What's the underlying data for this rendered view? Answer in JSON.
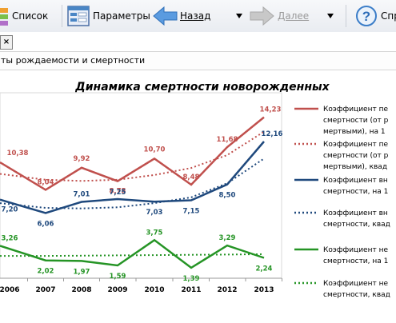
{
  "toolbar": {
    "list_label": "Список",
    "params_label": "Параметры",
    "back_label": "Назад",
    "forward_label": "Далее",
    "help_label": "Спр"
  },
  "tab": {
    "close": "×"
  },
  "report": {
    "title_partial": "ты рождаемости и смертности"
  },
  "colors": {
    "red": "#c0504d",
    "blue": "#1f497d",
    "green": "#259425",
    "accent": "#4a86c5"
  },
  "chart_data": {
    "type": "line",
    "title": "Динамика смертности новорожденных",
    "categories": [
      "2006",
      "2007",
      "2008",
      "2009",
      "2010",
      "2011",
      "2012",
      "2013"
    ],
    "series": [
      {
        "values": [
          10.38,
          8.04,
          9.92,
          8.78,
          10.7,
          8.48,
          11.68,
          14.23
        ],
        "labels": [
          "10,38",
          "8,04",
          "9,92",
          "8,78",
          "10,70",
          "8,48",
          "11,68",
          "14,23"
        ]
      },
      {
        "values": [
          7.2,
          6.06,
          7.01,
          7.25,
          7.03,
          7.15,
          8.5,
          12.16
        ],
        "labels": [
          "7,20",
          "6,06",
          "7,01",
          "7,25",
          "7,03",
          "7,15",
          "8,50",
          "12,16"
        ]
      },
      {
        "values": [
          3.26,
          2.02,
          1.97,
          1.59,
          3.75,
          1.39,
          3.29,
          2.24
        ],
        "labels": [
          "3,26",
          "2,02",
          "1,97",
          "1,59",
          "3,75",
          "1,39",
          "3,29",
          "2,24"
        ]
      }
    ],
    "trendlines": [
      {
        "values": [
          9.4,
          8.9,
          8.8,
          8.9,
          9.3,
          9.9,
          11.0,
          13.0
        ]
      },
      {
        "values": [
          6.9,
          6.5,
          6.45,
          6.55,
          6.9,
          7.4,
          8.6,
          10.7
        ]
      },
      {
        "values": [
          2.4,
          2.4,
          2.42,
          2.45,
          2.47,
          2.5,
          2.52,
          2.55
        ]
      }
    ],
    "legend": [
      [
        "Коэффициент  пе",
        "смертности (от р",
        "мертвыми), на 1"
      ],
      [
        "Коэффициент  пе",
        "смертности (от р",
        "мертвыми), квад"
      ],
      [
        "Коэффициент  вн",
        "смертности, на 1"
      ],
      [
        "Коэффициент  вн",
        "смертности, квад"
      ],
      [
        "Коэффициент  не",
        "смертности, на 1"
      ],
      [
        "Коэффициент  не",
        "смертности, квад"
      ]
    ]
  }
}
